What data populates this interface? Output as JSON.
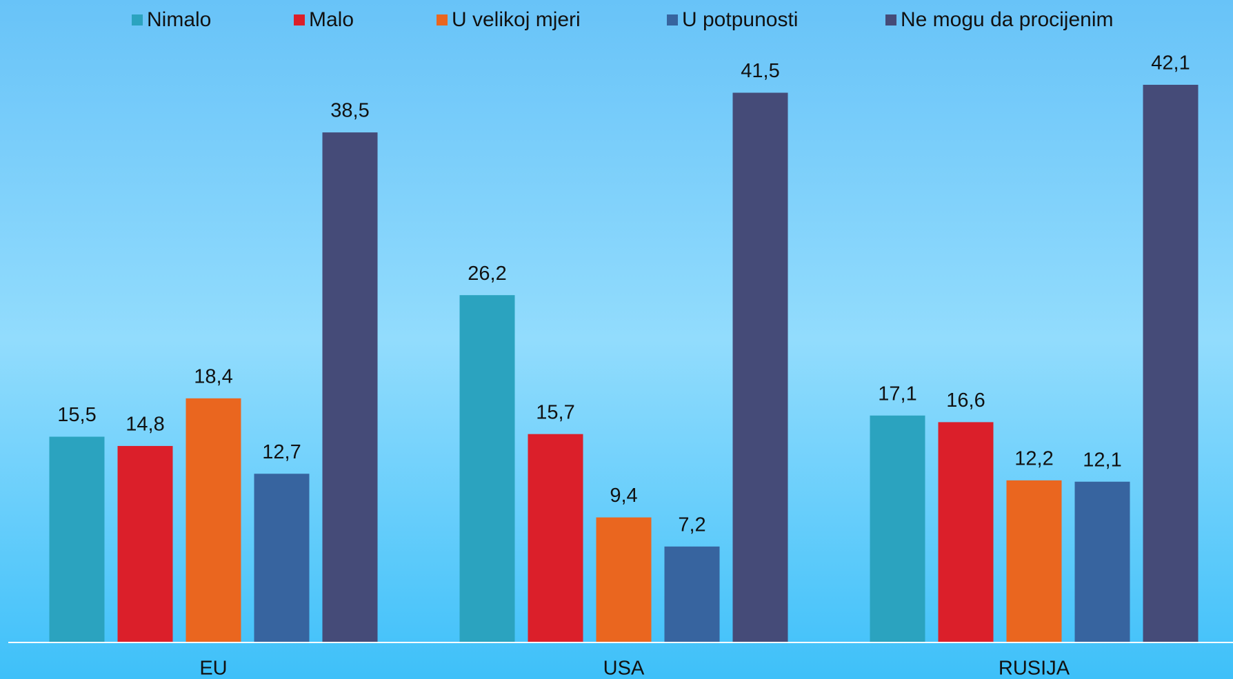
{
  "chart_data": {
    "type": "bar",
    "categories": [
      "EU",
      "USA",
      "RUSIJA"
    ],
    "series": [
      {
        "name": "Nimalo",
        "color": "#2ba3bf",
        "values": [
          15.5,
          26.2,
          17.1
        ],
        "value_labels": [
          "15,5",
          "26,2",
          "17,1"
        ]
      },
      {
        "name": "Malo",
        "color": "#db1f2a",
        "values": [
          14.8,
          15.7,
          16.6
        ],
        "value_labels": [
          "14,8",
          "15,7",
          "16,6"
        ]
      },
      {
        "name": "U velikoj mjeri",
        "color": "#ea661f",
        "values": [
          18.4,
          9.4,
          12.2
        ],
        "value_labels": [
          "18,4",
          "9,4",
          "12,2"
        ]
      },
      {
        "name": "U potpunosti",
        "color": "#37649f",
        "values": [
          12.7,
          7.2,
          12.1
        ],
        "value_labels": [
          "12,7",
          "7,2",
          "12,1"
        ]
      },
      {
        "name": "Ne mogu da procijenim",
        "color": "#454b78",
        "values": [
          38.5,
          41.5,
          42.1
        ],
        "value_labels": [
          "38,5",
          "41,5",
          "42,1"
        ]
      }
    ],
    "legend": "top"
  }
}
